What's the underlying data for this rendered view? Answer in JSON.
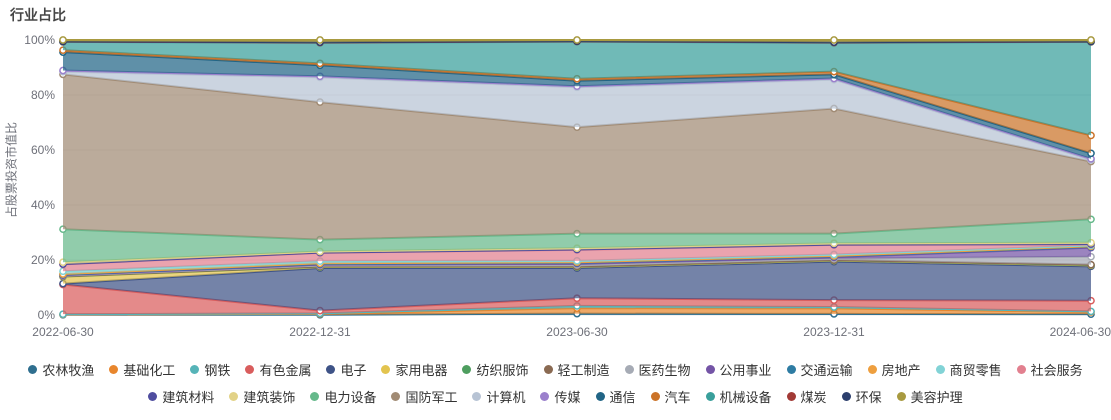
{
  "chart_data": {
    "type": "area",
    "stacked": true,
    "percent_stacked": true,
    "title": "行业占比",
    "ylabel": "占股票投资市值比",
    "xlabel": "",
    "grid": true,
    "legend_position": "bottom",
    "legend_rows": [
      14,
      12
    ],
    "ylim": [
      0,
      100
    ],
    "yticks": [
      "0%",
      "20%",
      "40%",
      "60%",
      "80%",
      "100%"
    ],
    "x": [
      "2022-06-30",
      "2022-12-31",
      "2023-06-30",
      "2023-12-31",
      "2024-06-30"
    ],
    "unit": "%",
    "series": [
      {
        "name": "农林牧渔",
        "color": "#2f6f8f",
        "values": [
          0.1,
          0.1,
          0.5,
          0.4,
          0.3
        ]
      },
      {
        "name": "基础化工",
        "color": "#e8862d",
        "values": [
          0.1,
          0.3,
          2.0,
          2.0,
          0.8
        ]
      },
      {
        "name": "钢铁",
        "color": "#56b4b8",
        "values": [
          0.1,
          0.2,
          0.8,
          0.5,
          0.2
        ]
      },
      {
        "name": "有色金属",
        "color": "#d95d5d",
        "values": [
          10.8,
          1.0,
          2.8,
          2.5,
          3.9
        ]
      },
      {
        "name": "电子",
        "color": "#3e5387",
        "values": [
          0.3,
          15.5,
          11.0,
          14.0,
          12.5
        ]
      },
      {
        "name": "家用电器",
        "color": "#e3c44f",
        "values": [
          2.5,
          0.4,
          0.4,
          0.4,
          0.4
        ]
      },
      {
        "name": "纺织服饰",
        "color": "#4e9e5f",
        "values": [
          0.1,
          0.1,
          0.1,
          0.1,
          0.1
        ]
      },
      {
        "name": "轻工制造",
        "color": "#8a6a52",
        "values": [
          0.1,
          0.1,
          0.1,
          0.1,
          0.1
        ]
      },
      {
        "name": "医药生物",
        "color": "#a6abb5",
        "values": [
          0.2,
          0.3,
          0.5,
          0.5,
          2.9
        ]
      },
      {
        "name": "公用事业",
        "color": "#7454a6",
        "values": [
          0.2,
          0.3,
          0.5,
          0.5,
          3.3
        ]
      },
      {
        "name": "交通运输",
        "color": "#2e7ca3",
        "values": [
          0.2,
          0.3,
          0.3,
          0.3,
          0.3
        ]
      },
      {
        "name": "房地产",
        "color": "#ee9f3f",
        "values": [
          0.2,
          0.2,
          0.2,
          0.2,
          0.2
        ]
      },
      {
        "name": "商贸零售",
        "color": "#82d3d6",
        "values": [
          1.0,
          0.8,
          0.5,
          0.5,
          0.3
        ]
      },
      {
        "name": "社会服务",
        "color": "#e2808f",
        "values": [
          2.5,
          3.0,
          4.0,
          3.5,
          0.4
        ]
      },
      {
        "name": "建筑材料",
        "color": "#4f4d9f",
        "values": [
          0.1,
          0.1,
          0.1,
          0.1,
          0.1
        ]
      },
      {
        "name": "建筑装饰",
        "color": "#e2d287",
        "values": [
          0.7,
          0.4,
          0.5,
          0.5,
          0.5
        ]
      },
      {
        "name": "电力设备",
        "color": "#66b98b",
        "values": [
          12.0,
          4.3,
          5.3,
          3.5,
          8.5
        ]
      },
      {
        "name": "国防军工",
        "color": "#a18b74",
        "values": [
          56.3,
          50.0,
          38.7,
          45.5,
          21.0
        ]
      },
      {
        "name": "计算机",
        "color": "#b7c3d4",
        "values": [
          1.0,
          9.0,
          14.5,
          10.5,
          0.6
        ]
      },
      {
        "name": "传媒",
        "color": "#9b80cc",
        "values": [
          0.4,
          0.4,
          0.4,
          0.4,
          0.4
        ]
      },
      {
        "name": "通信",
        "color": "#216586",
        "values": [
          6.7,
          4.0,
          2.0,
          1.5,
          2.0
        ]
      },
      {
        "name": "汽车",
        "color": "#cb7328",
        "values": [
          0.7,
          0.7,
          0.7,
          1.0,
          6.5
        ]
      },
      {
        "name": "机械设备",
        "color": "#399f9b",
        "values": [
          3.0,
          7.5,
          13.5,
          10.5,
          34.0
        ]
      },
      {
        "name": "煤炭",
        "color": "#a23a36",
        "values": [
          0.1,
          0.1,
          0.1,
          0.1,
          0.1
        ]
      },
      {
        "name": "环保",
        "color": "#2c3f6d",
        "values": [
          0.1,
          0.1,
          0.1,
          0.1,
          0.1
        ]
      },
      {
        "name": "美容护理",
        "color": "#a89a40",
        "values": [
          0.5,
          0.8,
          0.4,
          0.8,
          0.5
        ]
      }
    ],
    "style": {
      "area_opacity": 0.72,
      "grid_color": "#e6e6e6",
      "tick_color": "#6e7079",
      "marker": "empty-circle"
    }
  }
}
